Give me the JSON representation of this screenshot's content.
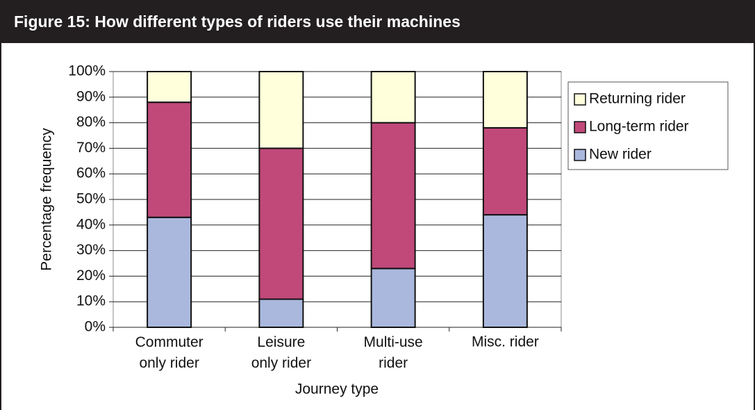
{
  "chart_data": {
    "type": "stacked_bar",
    "title": "Figure 15:  How different types of riders use their machines",
    "x_label": "Journey type",
    "y_label": "Percentage frequency",
    "categories": [
      "Commuter\nonly rider",
      "Leisure\nonly rider",
      "Multi-use\nrider",
      "Misc. rider"
    ],
    "series": [
      {
        "name": "New rider",
        "color": "#aab8de",
        "values": [
          43,
          11,
          23,
          44
        ]
      },
      {
        "name": "Long-term rider",
        "color": "#c0497a",
        "values": [
          45,
          59,
          57,
          34
        ]
      },
      {
        "name": "Returning rider",
        "color": "#ffffdc",
        "values": [
          12,
          30,
          20,
          22
        ]
      }
    ],
    "ylim": [
      0,
      100
    ],
    "yticks": [
      {
        "value": 0,
        "label": "0%"
      },
      {
        "value": 10,
        "label": "10%"
      },
      {
        "value": 20,
        "label": "20%"
      },
      {
        "value": 30,
        "label": "30%"
      },
      {
        "value": 40,
        "label": "40%"
      },
      {
        "value": 50,
        "label": "50%"
      },
      {
        "value": 60,
        "label": "60%"
      },
      {
        "value": 70,
        "label": "70%"
      },
      {
        "value": 80,
        "label": "80%"
      },
      {
        "value": 90,
        "label": "90%"
      },
      {
        "value": 100,
        "label": "100%"
      }
    ],
    "grid": true,
    "legend": "right"
  }
}
